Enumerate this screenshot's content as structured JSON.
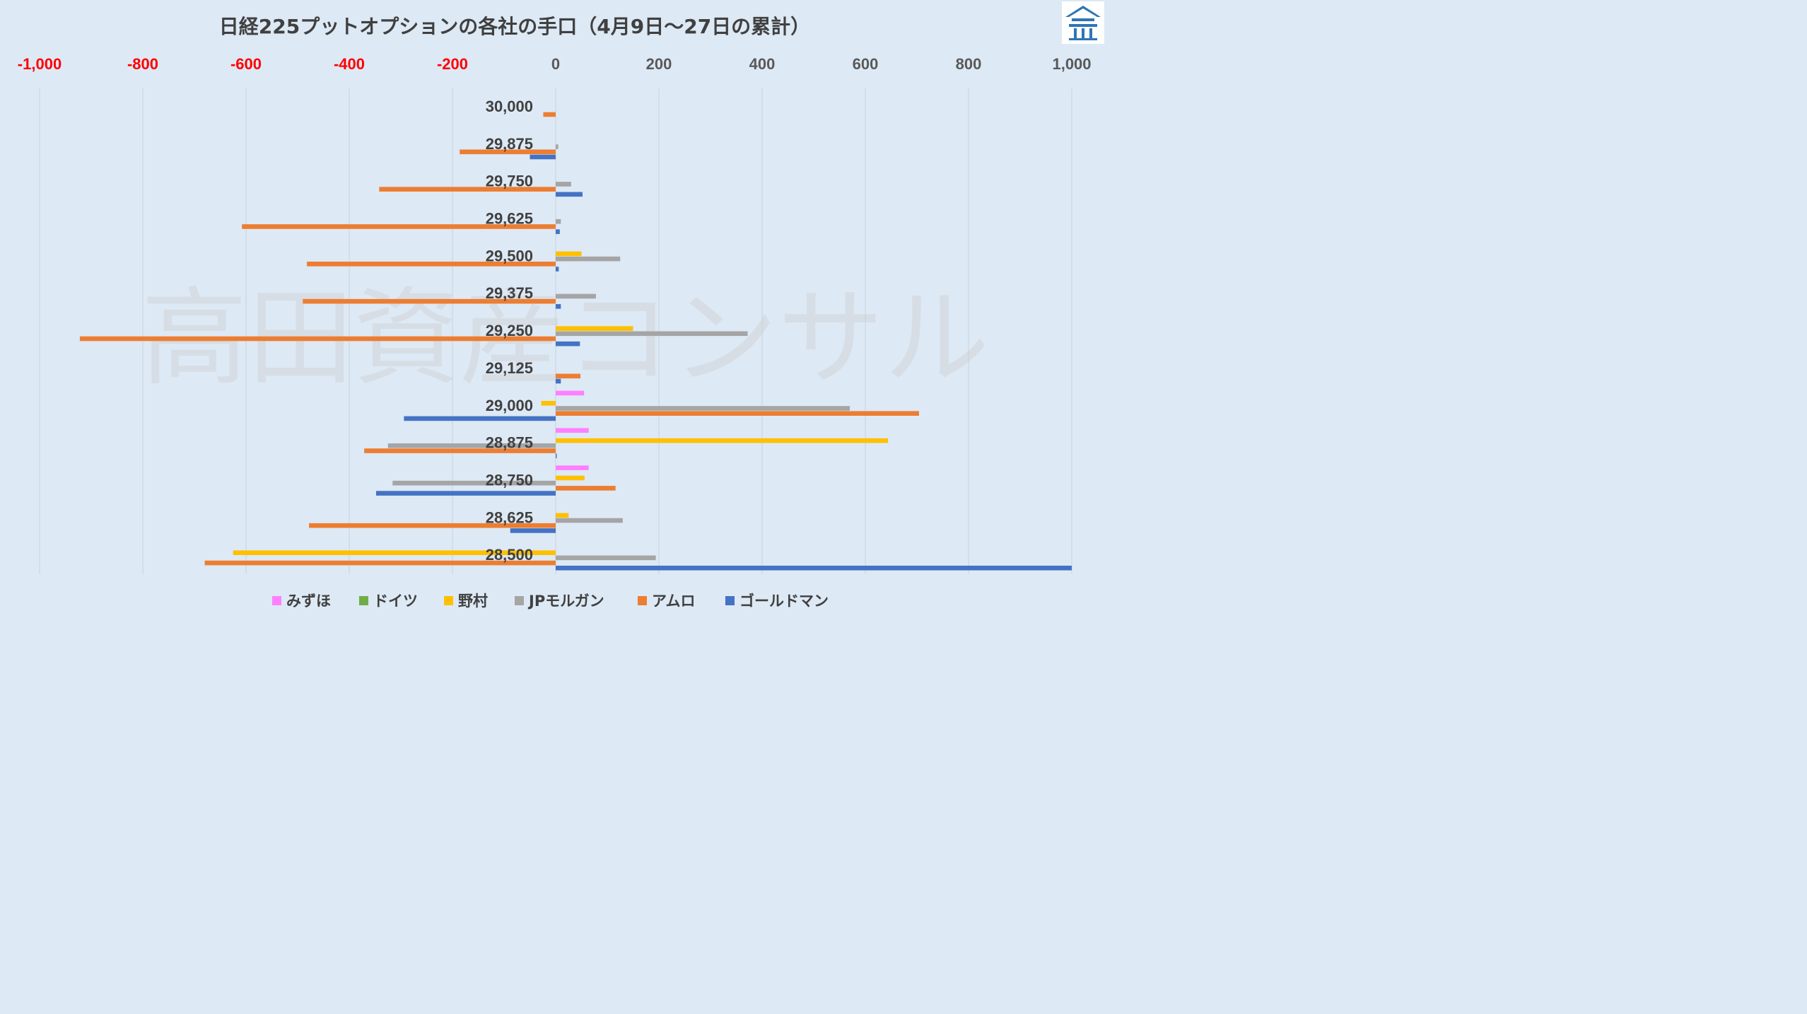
{
  "chart_data": {
    "type": "bar",
    "orientation": "horizontal",
    "title": "日経225プットオプションの各社の手口（4月9日～27日の累計）",
    "categories": [
      "30,000",
      "29,875",
      "29,750",
      "29,625",
      "29,500",
      "29,375",
      "29,250",
      "29,125",
      "29,000",
      "28,875",
      "28,750",
      "28,625",
      "28,500"
    ],
    "x_ticks": [
      "-1,000",
      "-800",
      "-600",
      "-400",
      "-200",
      "0",
      "200",
      "400",
      "600",
      "800",
      "1,000"
    ],
    "x_tick_values": [
      -1000,
      -800,
      -600,
      -400,
      -200,
      0,
      200,
      400,
      600,
      800,
      1000
    ],
    "xlim": [
      -1000,
      1000
    ],
    "grid": true,
    "legend_position": "bottom",
    "negative_tick_color": "#ff0000",
    "positive_tick_color": "#595959",
    "series": [
      {
        "name": "みずほ",
        "color": "#ff80ff",
        "values": [
          0,
          0,
          0,
          0,
          0,
          0,
          0,
          0,
          55,
          64,
          64,
          0,
          0
        ]
      },
      {
        "name": "ドイツ",
        "color": "#70ad47",
        "values": [
          0,
          0,
          0,
          0,
          0,
          0,
          0,
          0,
          0,
          0,
          0,
          0,
          0
        ]
      },
      {
        "name": "野村",
        "color": "#ffc000",
        "values": [
          0,
          0,
          0,
          0,
          50,
          0,
          150,
          0,
          -28,
          644,
          56,
          25,
          -625
        ]
      },
      {
        "name": "JPモルガン",
        "color": "#a5a5a5",
        "values": [
          0,
          5,
          30,
          10,
          125,
          78,
          372,
          0,
          570,
          -325,
          -316,
          130,
          194
        ]
      },
      {
        "name": "アムロ",
        "color": "#ed7d31",
        "values": [
          -24,
          -186,
          -342,
          -608,
          -482,
          -490,
          -922,
          48,
          704,
          -371,
          116,
          -478,
          -680
        ]
      },
      {
        "name": "ゴールドマン",
        "color": "#4472c4",
        "values": [
          0,
          -50,
          52,
          8,
          6,
          10,
          47,
          10,
          -294,
          2,
          -348,
          -88,
          1000
        ]
      }
    ]
  },
  "watermark": "高田資産コンサル",
  "logo": {
    "name": "logo-icon",
    "color": "#2e75b6"
  }
}
